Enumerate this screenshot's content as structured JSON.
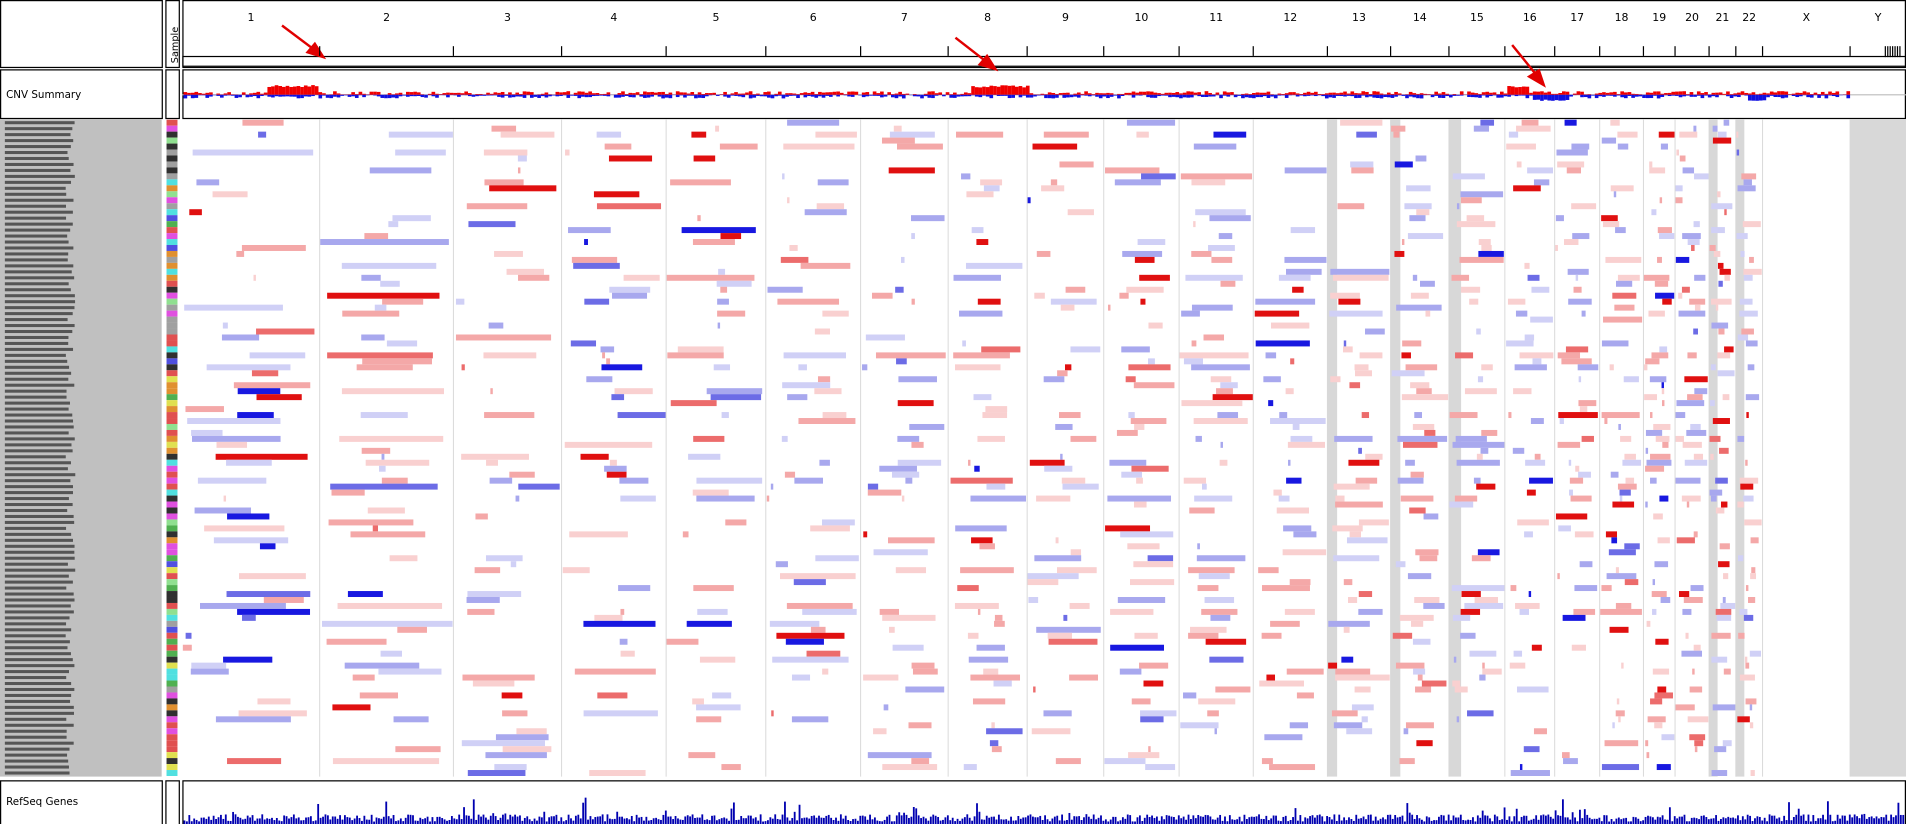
{
  "header": {
    "sample_label": "Sample",
    "chromosomes": [
      "1",
      "2",
      "3",
      "4",
      "5",
      "6",
      "7",
      "8",
      "9",
      "10",
      "11",
      "12",
      "13",
      "14",
      "15",
      "16",
      "17",
      "18",
      "19",
      "20",
      "21",
      "22",
      "X",
      "Y"
    ]
  },
  "tracks": {
    "cnv_summary": "CNV Summary",
    "refseq_genes": "RefSeq Genes"
  }
}
